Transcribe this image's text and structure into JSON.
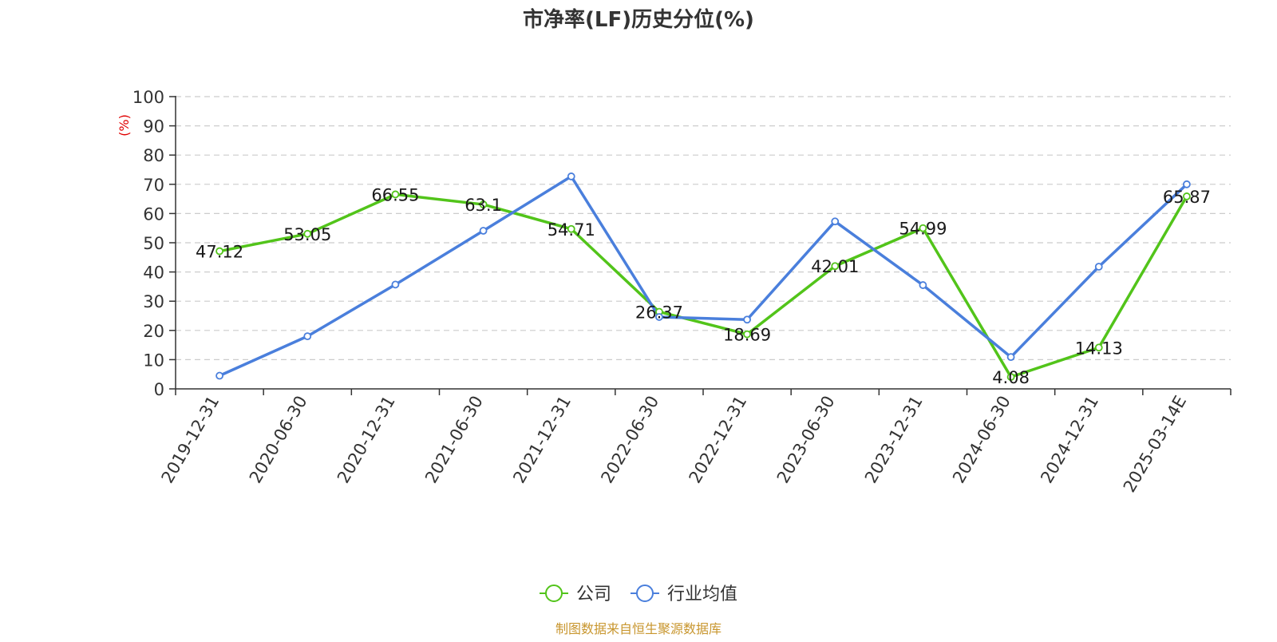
{
  "chart_data": {
    "type": "line",
    "title": "市净率(LF)历史分位(%)",
    "ylabel": "(%)",
    "ylim": [
      0,
      100
    ],
    "yticks": [
      0,
      10,
      20,
      30,
      40,
      50,
      60,
      70,
      80,
      90,
      100
    ],
    "grid": true,
    "legend_position": "bottom-center",
    "categories": [
      "2019-12-31",
      "2020-06-30",
      "2020-12-31",
      "2021-06-30",
      "2021-12-31",
      "2022-06-30",
      "2022-12-31",
      "2023-06-30",
      "2023-12-31",
      "2024-06-30",
      "2024-12-31",
      "2025-03-14E"
    ],
    "series": [
      {
        "name": "公司",
        "color": "#52c41a",
        "show_labels": true,
        "values": [
          47.12,
          53.05,
          66.55,
          63.1,
          54.71,
          26.37,
          18.69,
          42.01,
          54.99,
          4.08,
          14.13,
          65.87
        ]
      },
      {
        "name": "行业均值",
        "color": "#4a7fdc",
        "show_labels": false,
        "values": [
          4.5,
          18.0,
          35.7,
          54.1,
          72.7,
          24.6,
          23.7,
          57.3,
          35.5,
          10.9,
          41.8,
          70.0
        ]
      }
    ],
    "source": "制图数据来自恒生聚源数据库"
  },
  "colors": {
    "title": "#333333",
    "axis": "#333333",
    "grid": "#cccccc",
    "ylabel": "#e00000",
    "source": "#c8962e"
  }
}
